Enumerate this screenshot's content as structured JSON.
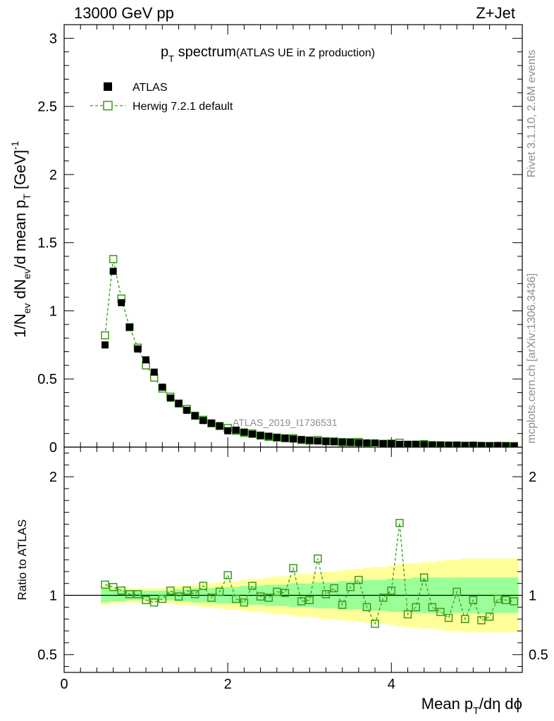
{
  "header": {
    "energy": "13000 GeV pp",
    "process": "Z+Jet"
  },
  "side_text": {
    "rivet": "Rivet 3.1.10,  2.6M events",
    "mcplots": "mcplots.cern.ch [arXiv:1306.3436]"
  },
  "colors": {
    "data": "#000000",
    "mc": "#3a9b1a",
    "band_inner": "#99ff99",
    "band_outer": "#ffff99",
    "watermark": "#8c8c8c"
  },
  "chart_data": {
    "type": "scatter",
    "title": "pT spectrum",
    "subtitle": "(ATLAS UE in Z production)",
    "analysis_tag": "ATLAS_2019_I1736531",
    "xlabel": "Mean pT/dη dφ",
    "ylabel": "1/Nev dNev/d mean pT [GeV]-1",
    "ratio_ylabel": "Ratio to ATLAS",
    "xlim": [
      0,
      5.6
    ],
    "ylim": [
      0,
      3.1
    ],
    "ratio_ylim": [
      0.35,
      2.25
    ],
    "x_ticks": [
      "0",
      "2",
      "4"
    ],
    "y_ticks": [
      "0",
      "0.5",
      "1",
      "1.5",
      "2",
      "2.5",
      "3"
    ],
    "ratio_ticks": [
      "0.5",
      "1",
      "2"
    ],
    "legend": [
      {
        "name": "ATLAS",
        "marker": "filled-square"
      },
      {
        "name": "Herwig 7.2.1 default",
        "marker": "open-square-dashed"
      }
    ],
    "x": [
      0.5,
      0.6,
      0.7,
      0.8,
      0.9,
      1.0,
      1.1,
      1.2,
      1.3,
      1.4,
      1.5,
      1.6,
      1.7,
      1.8,
      1.9,
      2.0,
      2.1,
      2.2,
      2.3,
      2.4,
      2.5,
      2.6,
      2.7,
      2.8,
      2.9,
      3.0,
      3.1,
      3.2,
      3.3,
      3.4,
      3.5,
      3.6,
      3.7,
      3.8,
      3.9,
      4.0,
      4.1,
      4.2,
      4.3,
      4.4,
      4.5,
      4.6,
      4.7,
      4.8,
      4.9,
      5.0,
      5.1,
      5.2,
      5.3,
      5.4,
      5.5
    ],
    "series": [
      {
        "name": "ATLAS",
        "values": [
          0.75,
          1.29,
          1.06,
          0.88,
          0.72,
          0.64,
          0.55,
          0.44,
          0.36,
          0.32,
          0.27,
          0.23,
          0.195,
          0.175,
          0.155,
          0.12,
          0.125,
          0.11,
          0.095,
          0.085,
          0.08,
          0.07,
          0.065,
          0.06,
          0.055,
          0.05,
          0.045,
          0.042,
          0.04,
          0.038,
          0.035,
          0.032,
          0.03,
          0.03,
          0.025,
          0.025,
          0.02,
          0.02,
          0.02,
          0.018,
          0.016,
          0.015,
          0.014,
          0.013,
          0.012,
          0.012,
          0.011,
          0.01,
          0.01,
          0.009,
          0.008
        ]
      },
      {
        "name": "Herwig 7.2.1 default",
        "values": [
          0.82,
          1.38,
          1.09,
          0.88,
          0.73,
          0.6,
          0.51,
          0.43,
          0.37,
          0.32,
          0.28,
          0.23,
          0.2,
          0.175,
          0.155,
          0.14,
          0.12,
          0.105,
          0.1,
          0.085,
          0.075,
          0.07,
          0.065,
          0.065,
          0.052,
          0.048,
          0.052,
          0.043,
          0.042,
          0.036,
          0.036,
          0.038,
          0.027,
          0.023,
          0.024,
          0.026,
          0.032,
          0.017,
          0.018,
          0.022,
          0.014,
          0.013,
          0.011,
          0.013,
          0.0096,
          0.0115,
          0.0087,
          0.0082,
          0.0096,
          0.0086,
          0.0076
        ]
      }
    ],
    "ratio": [
      1.09,
      1.07,
      1.04,
      1.01,
      1.01,
      0.96,
      0.94,
      0.97,
      1.04,
      0.99,
      1.04,
      1.01,
      1.08,
      0.98,
      1.03,
      1.17,
      0.97,
      0.94,
      1.08,
      0.99,
      0.98,
      1.03,
      1.02,
      1.23,
      0.95,
      0.96,
      1.31,
      1.01,
      1.06,
      0.92,
      1.07,
      1.13,
      0.9,
      0.76,
      0.98,
      1.04,
      1.61,
      0.84,
      0.9,
      1.15,
      0.9,
      0.86,
      0.81,
      1.03,
      0.8,
      0.96,
      0.79,
      0.82,
      0.97,
      0.96,
      0.95
    ],
    "band_inner": [
      0.06,
      0.05,
      0.05,
      0.04,
      0.04,
      0.04,
      0.04,
      0.04,
      0.04,
      0.05,
      0.05,
      0.06,
      0.06,
      0.06,
      0.07,
      0.07,
      0.07,
      0.08,
      0.08,
      0.08,
      0.09,
      0.09,
      0.09,
      0.1,
      0.1,
      0.1,
      0.11,
      0.11,
      0.11,
      0.12,
      0.12,
      0.12,
      0.13,
      0.13,
      0.13,
      0.14,
      0.14,
      0.14,
      0.15,
      0.15,
      0.15,
      0.15,
      0.15,
      0.15,
      0.15,
      0.15,
      0.15,
      0.15,
      0.15,
      0.15,
      0.15
    ],
    "band_outer": [
      0.08,
      0.07,
      0.07,
      0.06,
      0.06,
      0.06,
      0.06,
      0.06,
      0.07,
      0.08,
      0.08,
      0.09,
      0.1,
      0.1,
      0.11,
      0.12,
      0.12,
      0.13,
      0.14,
      0.14,
      0.15,
      0.16,
      0.16,
      0.17,
      0.18,
      0.18,
      0.19,
      0.2,
      0.2,
      0.21,
      0.22,
      0.22,
      0.23,
      0.24,
      0.24,
      0.25,
      0.26,
      0.27,
      0.27,
      0.28,
      0.28,
      0.29,
      0.3,
      0.3,
      0.31,
      0.31,
      0.31,
      0.31,
      0.31,
      0.31,
      0.31
    ]
  }
}
